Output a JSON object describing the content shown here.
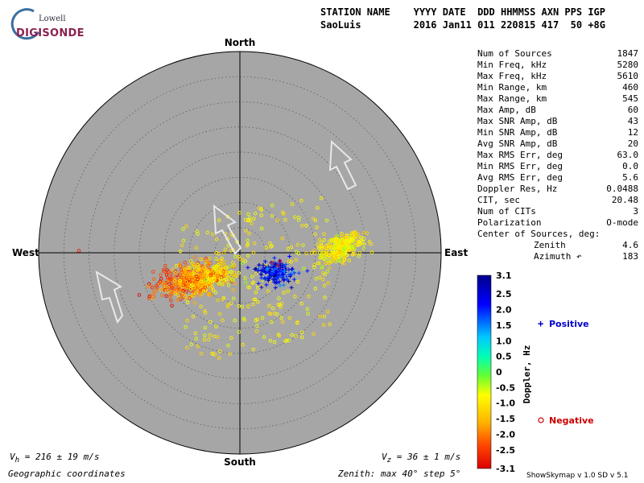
{
  "logo": {
    "top": "Lowell",
    "main": "DIGISONDE"
  },
  "header": {
    "line1": "STATION NAME    YYYY DATE  DDD HHMMSS AXN PPS IGP",
    "line2": "SaoLuis         2016 Jan11 011 220815 417  50 +8G"
  },
  "stats": [
    {
      "label": "Num of Sources",
      "value": "1847"
    },
    {
      "label": "Min Freq, kHz",
      "value": "5280"
    },
    {
      "label": "Max Freq, kHz",
      "value": "5610"
    },
    {
      "label": "Min Range, km",
      "value": "460"
    },
    {
      "label": "Max Range, km",
      "value": "545"
    },
    {
      "label": "Max Amp, dB",
      "value": "60"
    },
    {
      "label": "Max SNR Amp, dB",
      "value": "43"
    },
    {
      "label": "Min SNR Amp, dB",
      "value": "12"
    },
    {
      "label": "Avg SNR Amp, dB",
      "value": "20"
    },
    {
      "label": "Max RMS Err, deg",
      "value": "63.0"
    },
    {
      "label": "Min RMS Err, deg",
      "value": "0.0"
    },
    {
      "label": "Avg RMS Err, deg",
      "value": "5.6"
    },
    {
      "label": "Doppler Res, Hz",
      "value": "0.0488"
    },
    {
      "label": "CIT, sec",
      "value": "20.48"
    },
    {
      "label": "Num of CITs",
      "value": "3"
    },
    {
      "label": "Polarization",
      "value": "O-mode"
    },
    {
      "label": "Center of Sources, deg:",
      "value": ""
    },
    {
      "label": "Zenith",
      "value": "4.6",
      "indent": true
    },
    {
      "label": "Azimuth ↶",
      "value": "183",
      "indent": true
    }
  ],
  "directions": {
    "north": "North",
    "south": "South",
    "east": "East",
    "west": "West"
  },
  "colorbar": {
    "ticks": [
      "3.1",
      "2.5",
      "2.0",
      "1.5",
      "1.0",
      "0.5",
      "0",
      "-0.5",
      "-1.0",
      "-1.5",
      "-2.0",
      "-2.5",
      "-3.1"
    ],
    "label": "Doppler, Hz",
    "min": -3.1,
    "max": 3.1
  },
  "legend": {
    "positive": "Positive",
    "negative": "Negative",
    "positive_color": "#0000cc",
    "negative_color": "#cc0000"
  },
  "velocity_h": {
    "symbol": "V",
    "sub": "h",
    "text": " = 216 ± 19 m/s"
  },
  "velocity_z": {
    "symbol": "V",
    "sub": "z",
    "text": " = 36 ± 1 m/s"
  },
  "coord_system": "Geographic coordinates",
  "zenith_note": "Zenith: max 40°  step 5°",
  "software": "ShowSkymap v 1.0   SD v 5.1",
  "chart_data": {
    "type": "scatter",
    "projection": "polar skymap",
    "zenith_max_deg": 40,
    "zenith_step_deg": 5,
    "grid": true,
    "clusters": [
      {
        "name": "Positive",
        "marker": "+",
        "doppler_hz": [
          0.5,
          3.1
        ],
        "center_east_deg": 7,
        "center_north_deg": -4,
        "count": 160
      },
      {
        "name": "Negative",
        "marker": "o",
        "doppler_hz": [
          -3.1,
          -0.5
        ],
        "center_east_deg": -7,
        "center_north_deg": -5,
        "count": 620
      },
      {
        "name": "Negative",
        "marker": "o",
        "doppler_hz": [
          -1.5,
          -0.5
        ],
        "center_east_deg": 20,
        "center_north_deg": 1,
        "count": 320
      }
    ]
  }
}
